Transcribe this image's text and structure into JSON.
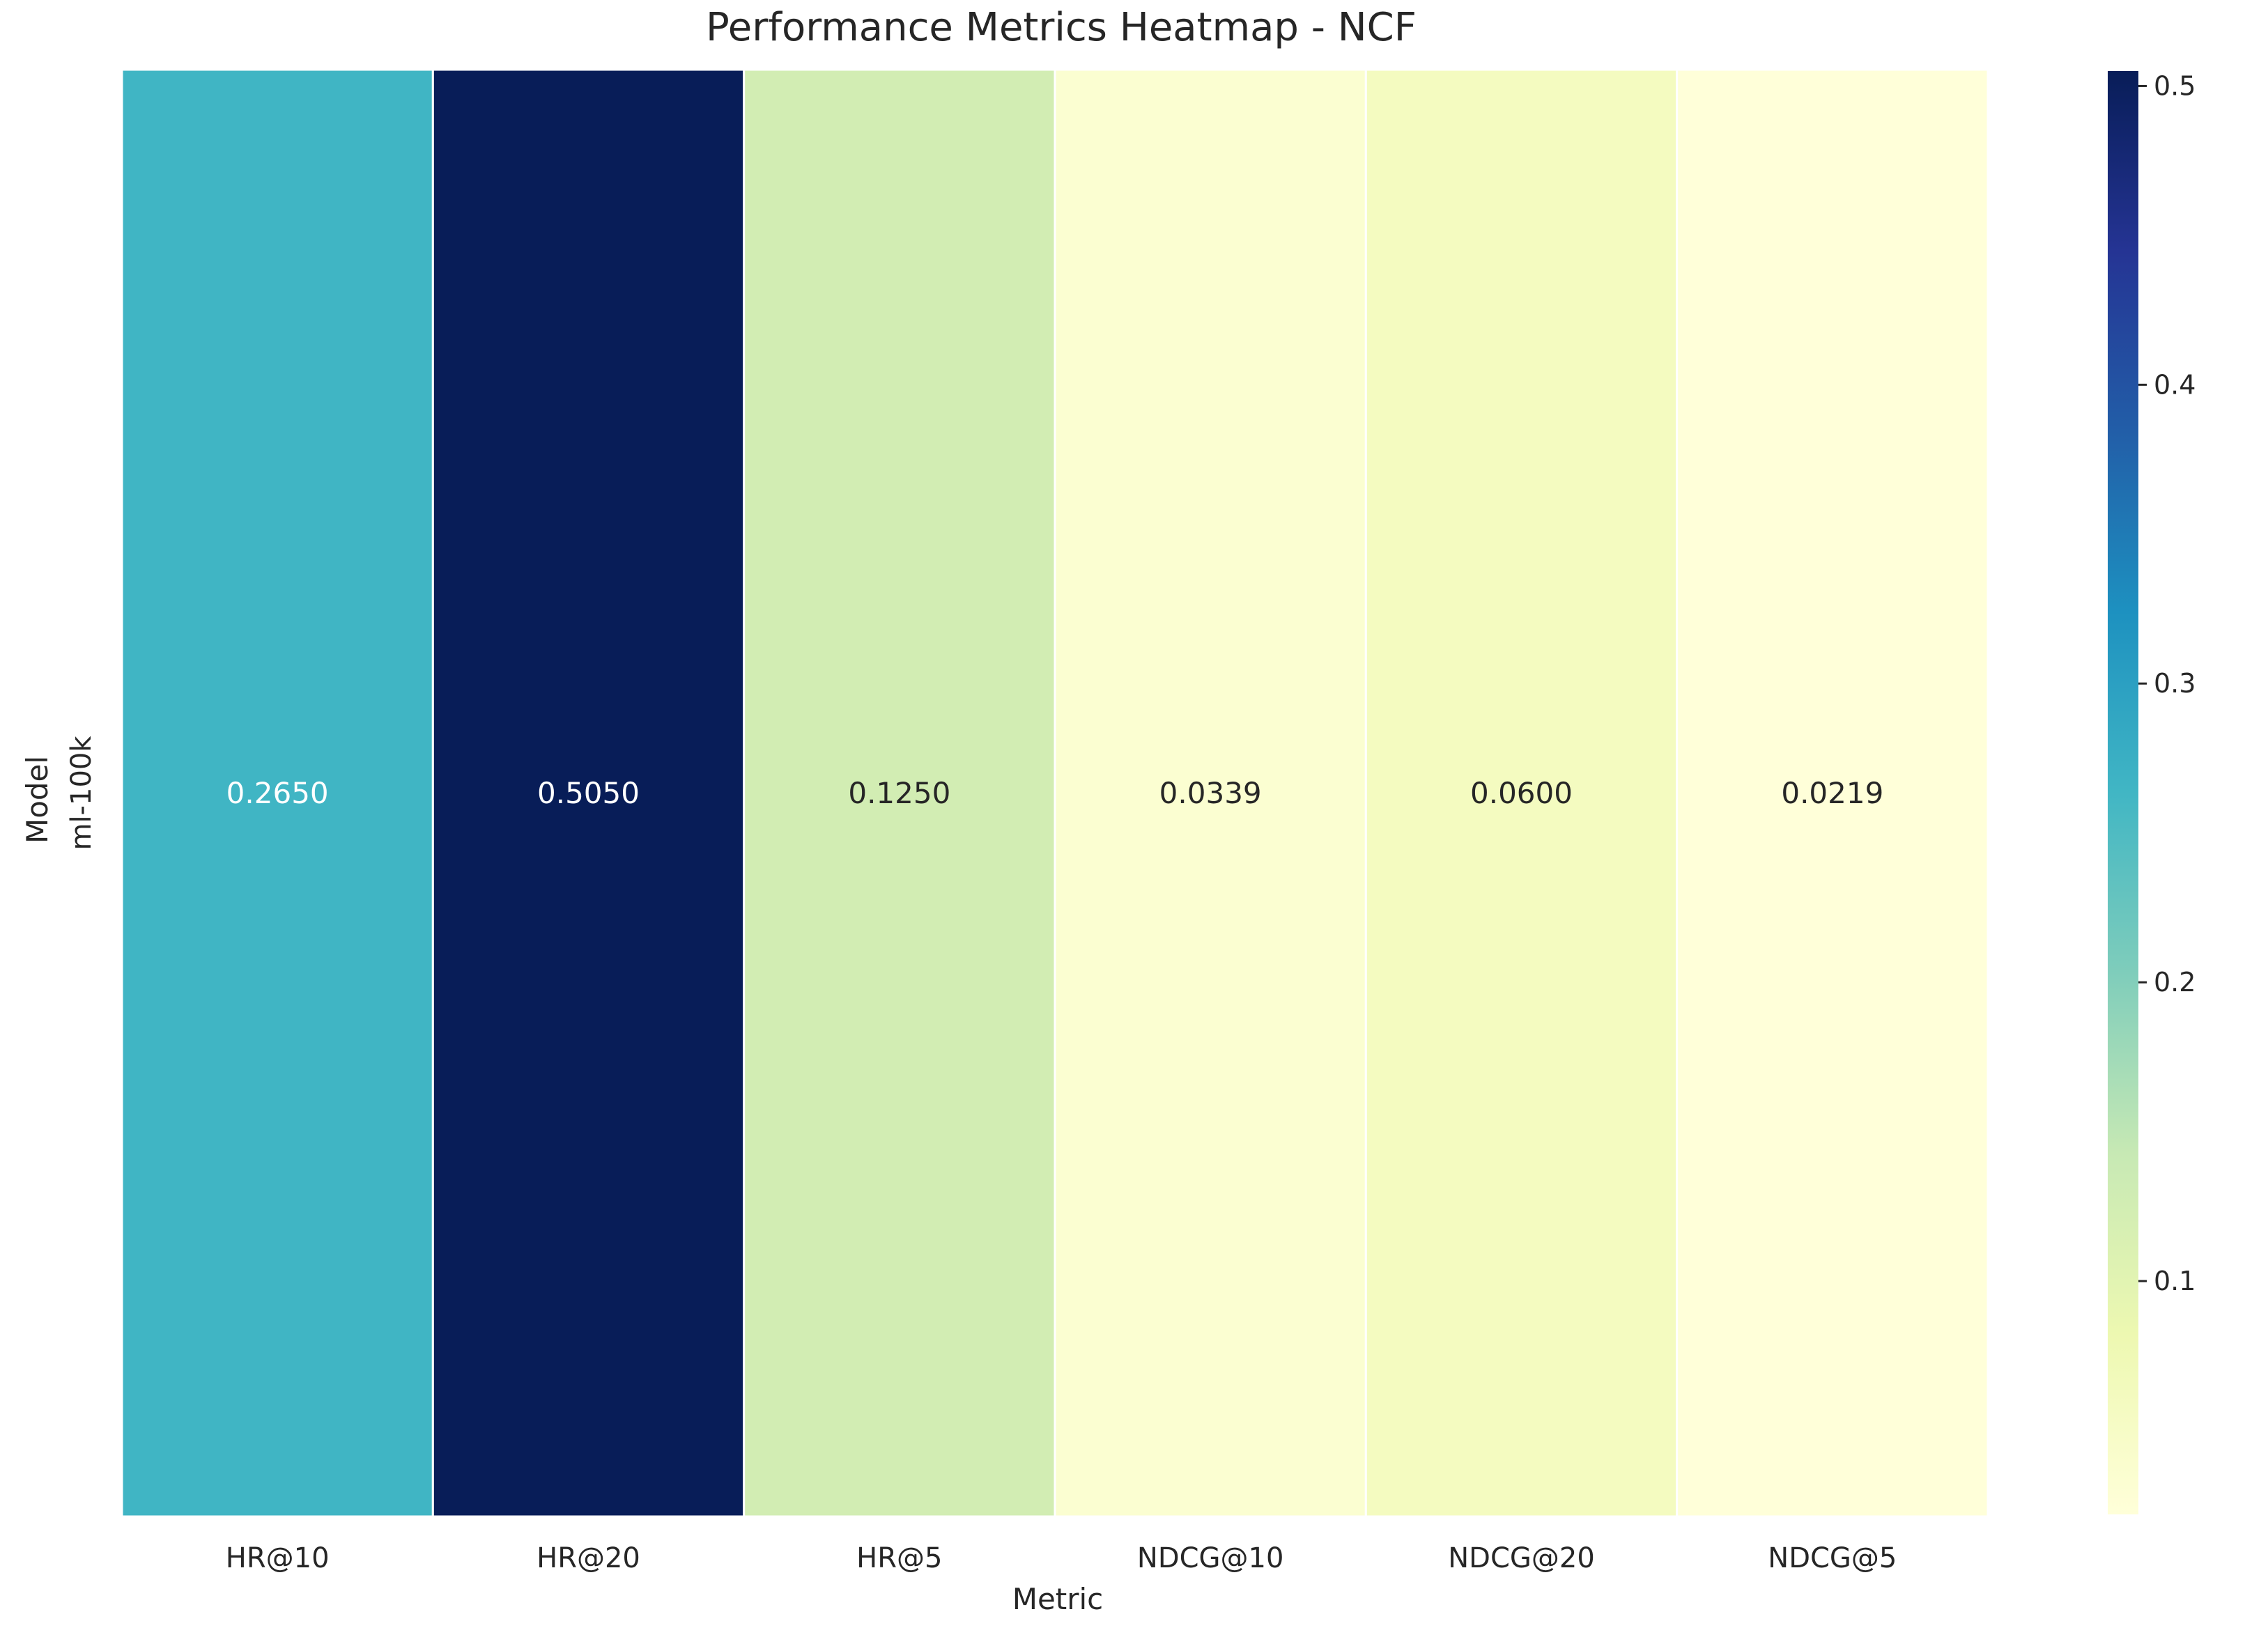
{
  "chart_data": {
    "type": "heatmap",
    "title": "Performance Metrics Heatmap - NCF",
    "xlabel": "Metric",
    "ylabel": "Model",
    "x_categories": [
      "HR@10",
      "HR@20",
      "HR@5",
      "NDCG@10",
      "NDCG@20",
      "NDCG@5"
    ],
    "y_categories": [
      "ml-100k"
    ],
    "values": [
      [
        0.265,
        0.505,
        0.125,
        0.0339,
        0.06,
        0.0219
      ]
    ],
    "annotations": [
      "0.2650",
      "0.5050",
      "0.1250",
      "0.0339",
      "0.0600",
      "0.0219"
    ],
    "colormap": "YlGnBu",
    "color_range": [
      0.0219,
      0.505
    ],
    "colorbar_ticks": [
      0.1,
      0.2,
      0.3,
      0.4,
      0.5
    ],
    "colorbar_tick_labels": [
      "0.1",
      "0.2",
      "0.3",
      "0.4",
      "0.5"
    ],
    "cell_border_color": "#ffffff",
    "annotation_text_colors": {
      "dark_cell": "#ffffff",
      "light_cell": "#262626"
    }
  }
}
